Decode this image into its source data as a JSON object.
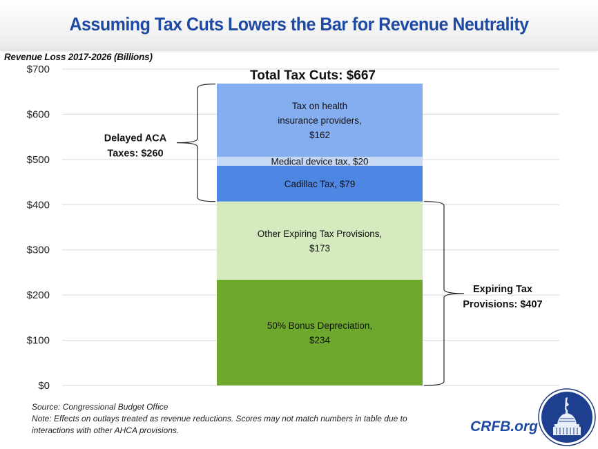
{
  "header": {
    "title": "Assuming Tax Cuts Lowers the Bar for Revenue Neutrality"
  },
  "footer": {
    "source": "Source: Congressional Budget Office",
    "note_line1": "Note: Effects on outlays treated as revenue reductions. Scores may not match numbers in table due to",
    "note_line2": "interactions with other AHCA provisions.",
    "brand": "CRFB.org",
    "logo_icon": "capitol-dome-icon"
  },
  "chart_data": {
    "type": "bar",
    "stacked": true,
    "title": "Total Tax Cuts: $667",
    "xlabel": "",
    "ylabel": "Revenue Loss 2017-2026 (Billions)",
    "ylim": [
      0,
      700
    ],
    "yticks": [
      0,
      100,
      200,
      300,
      400,
      500,
      600,
      700
    ],
    "ytick_labels": [
      "$0",
      "$100",
      "$200",
      "$300",
      "$400",
      "$500",
      "$600",
      "$700"
    ],
    "grid": true,
    "categories": [
      "Total Tax Cuts"
    ],
    "series": [
      {
        "name": "50% Bonus Depreciation",
        "values": [
          234
        ],
        "color": "#6fa82e",
        "label_lines": [
          "50% Bonus Depreciation,",
          "$234"
        ]
      },
      {
        "name": "Other Expiring Tax Provisions",
        "values": [
          173
        ],
        "color": "#d5eabe",
        "label_lines": [
          "Other Expiring Tax Provisions,",
          "$173"
        ]
      },
      {
        "name": "Cadillac Tax",
        "values": [
          79
        ],
        "color": "#4d86e3",
        "label_lines": [
          "Cadillac Tax, $79"
        ]
      },
      {
        "name": "Medical device tax",
        "values": [
          20
        ],
        "color": "#c7d9f5",
        "label_lines": [
          "Medical device tax, $20"
        ]
      },
      {
        "name": "Tax on health insurance providers",
        "values": [
          162
        ],
        "color": "#85aef0",
        "label_lines": [
          "Tax on health",
          "insurance providers,",
          "$162"
        ]
      }
    ],
    "annotations": [
      {
        "name": "Delayed ACA Taxes",
        "lines": [
          "Delayed ACA",
          "Taxes: $260"
        ],
        "range": [
          407,
          667
        ],
        "side": "left"
      },
      {
        "name": "Expiring Tax Provisions",
        "lines": [
          "Expiring Tax",
          "Provisions: $407"
        ],
        "range": [
          0,
          407
        ],
        "side": "right"
      }
    ]
  }
}
